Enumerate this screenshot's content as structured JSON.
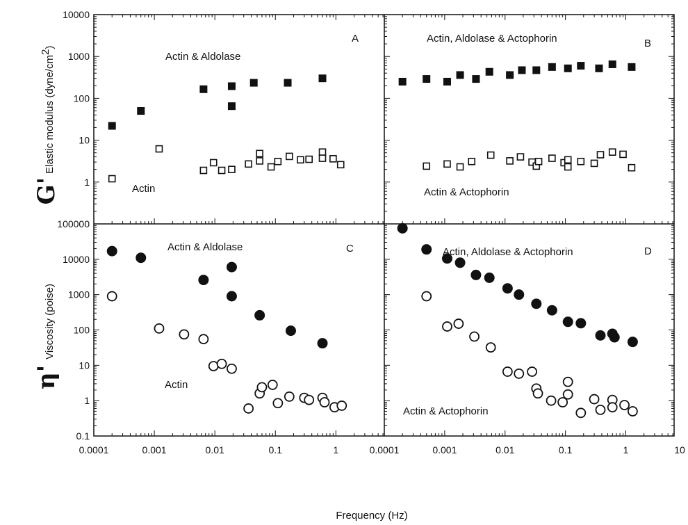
{
  "chart_data": {
    "type": "scatter",
    "xlabel": "Frequency (Hz)",
    "xscale": "log",
    "xlim": [
      0.0001,
      10
    ],
    "x_tick_labels": [
      "0.0001",
      "0.001",
      "0.01",
      "0.1",
      "1",
      "0.0001",
      "0.001",
      "0.01",
      "0.1",
      "1",
      "10"
    ],
    "rows": [
      {
        "ylabel_symbol": "G'",
        "ylabel_text": "Elastic modulus (dyne/cm",
        "ylabel_superscript": "2",
        "ylabel_close": ")",
        "yscale": "log",
        "ylim": [
          0.1,
          10000
        ],
        "y_tick_labels": [
          "10000",
          "1000",
          "100",
          "10",
          "1"
        ]
      },
      {
        "ylabel_symbol": "η'",
        "ylabel_text": "Viscosity (poise)",
        "yscale": "log",
        "ylim": [
          0.1,
          100000
        ],
        "y_tick_labels": [
          "100000",
          "10000",
          "1000",
          "100",
          "10",
          "1",
          "0.1"
        ]
      }
    ],
    "panels": [
      {
        "label": "A",
        "row": 0,
        "col": 0,
        "series": [
          {
            "name": "Actin & Aldolase",
            "marker": "filled-square",
            "points": [
              [
                0.0002,
                22
              ],
              [
                0.0006,
                50
              ],
              [
                0.0065,
                165
              ],
              [
                0.019,
                195
              ],
              [
                0.019,
                65
              ],
              [
                0.044,
                235
              ],
              [
                0.16,
                235
              ],
              [
                0.6,
                300
              ]
            ]
          },
          {
            "name": "Actin",
            "marker": "open-square",
            "points": [
              [
                0.0002,
                1.2
              ],
              [
                0.0012,
                6.2
              ],
              [
                0.0065,
                1.9
              ],
              [
                0.0095,
                2.9
              ],
              [
                0.013,
                1.9
              ],
              [
                0.019,
                2.0
              ],
              [
                0.036,
                2.7
              ],
              [
                0.055,
                4.8
              ],
              [
                0.055,
                3.2
              ],
              [
                0.085,
                2.3
              ],
              [
                0.11,
                3.1
              ],
              [
                0.17,
                4.1
              ],
              [
                0.26,
                3.4
              ],
              [
                0.36,
                3.5
              ],
              [
                0.6,
                5.2
              ],
              [
                0.6,
                3.7
              ],
              [
                0.9,
                3.6
              ],
              [
                1.2,
                2.6
              ]
            ]
          }
        ]
      },
      {
        "label": "B",
        "row": 0,
        "col": 1,
        "series": [
          {
            "name": "Actin, Aldolase & Actophorin",
            "marker": "filled-square",
            "points": [
              [
                0.0002,
                250
              ],
              [
                0.0005,
                290
              ],
              [
                0.0011,
                250
              ],
              [
                0.0018,
                360
              ],
              [
                0.0033,
                290
              ],
              [
                0.0055,
                430
              ],
              [
                0.012,
                360
              ],
              [
                0.019,
                470
              ],
              [
                0.033,
                470
              ],
              [
                0.06,
                560
              ],
              [
                0.11,
                520
              ],
              [
                0.18,
                600
              ],
              [
                0.36,
                520
              ],
              [
                0.6,
                650
              ],
              [
                1.25,
                560
              ]
            ]
          },
          {
            "name": "Actin & Actophorin",
            "marker": "open-square",
            "points": [
              [
                0.0005,
                2.4
              ],
              [
                0.0011,
                2.7
              ],
              [
                0.0018,
                2.3
              ],
              [
                0.0028,
                3.1
              ],
              [
                0.0058,
                4.4
              ],
              [
                0.012,
                3.2
              ],
              [
                0.018,
                4.0
              ],
              [
                0.028,
                3.0
              ],
              [
                0.033,
                2.4
              ],
              [
                0.036,
                3.1
              ],
              [
                0.06,
                3.7
              ],
              [
                0.095,
                2.9
              ],
              [
                0.11,
                2.3
              ],
              [
                0.11,
                3.4
              ],
              [
                0.18,
                3.1
              ],
              [
                0.3,
                2.8
              ],
              [
                0.38,
                4.5
              ],
              [
                0.6,
                5.2
              ],
              [
                0.9,
                4.6
              ],
              [
                1.25,
                2.2
              ]
            ]
          }
        ]
      },
      {
        "label": "C",
        "row": 1,
        "col": 0,
        "series": [
          {
            "name": "Actin & Aldolase",
            "marker": "filled-circle",
            "points": [
              [
                0.0002,
                17000
              ],
              [
                0.0006,
                11000
              ],
              [
                0.0065,
                2600
              ],
              [
                0.019,
                6000
              ],
              [
                0.019,
                900
              ],
              [
                0.055,
                260
              ],
              [
                0.18,
                95
              ],
              [
                0.6,
                42
              ]
            ]
          },
          {
            "name": "Actin",
            "marker": "open-circle",
            "points": [
              [
                0.0002,
                900
              ],
              [
                0.0012,
                110
              ],
              [
                0.0031,
                75
              ],
              [
                0.0065,
                55
              ],
              [
                0.0095,
                9.5
              ],
              [
                0.013,
                11
              ],
              [
                0.019,
                8
              ],
              [
                0.036,
                0.6
              ],
              [
                0.055,
                1.6
              ],
              [
                0.06,
                2.4
              ],
              [
                0.09,
                2.8
              ],
              [
                0.11,
                0.85
              ],
              [
                0.17,
                1.3
              ],
              [
                0.3,
                1.2
              ],
              [
                0.36,
                1.05
              ],
              [
                0.6,
                1.2
              ],
              [
                0.65,
                0.9
              ],
              [
                0.95,
                0.65
              ],
              [
                1.25,
                0.72
              ]
            ]
          }
        ]
      },
      {
        "label": "D",
        "row": 1,
        "col": 1,
        "series": [
          {
            "name": "Actin, Aldolase & Actophorin",
            "marker": "filled-circle",
            "points": [
              [
                0.0002,
                75000
              ],
              [
                0.0005,
                19000
              ],
              [
                0.0011,
                10500
              ],
              [
                0.0018,
                8000
              ],
              [
                0.0033,
                3600
              ],
              [
                0.0055,
                3000
              ],
              [
                0.011,
                1500
              ],
              [
                0.017,
                1000
              ],
              [
                0.033,
                550
              ],
              [
                0.06,
                360
              ],
              [
                0.11,
                170
              ],
              [
                0.18,
                155
              ],
              [
                0.38,
                70
              ],
              [
                0.65,
                62
              ],
              [
                0.6,
                78
              ],
              [
                1.3,
                46
              ]
            ]
          },
          {
            "name": "Actin & Actophorin",
            "marker": "open-circle",
            "points": [
              [
                0.0005,
                900
              ],
              [
                0.0011,
                125
              ],
              [
                0.0017,
                150
              ],
              [
                0.0031,
                65
              ],
              [
                0.0058,
                32
              ],
              [
                0.011,
                6.6
              ],
              [
                0.017,
                5.8
              ],
              [
                0.028,
                6.6
              ],
              [
                0.033,
                2.2
              ],
              [
                0.035,
                1.6
              ],
              [
                0.058,
                1.0
              ],
              [
                0.09,
                0.9
              ],
              [
                0.11,
                1.5
              ],
              [
                0.11,
                3.4
              ],
              [
                0.18,
                0.45
              ],
              [
                0.3,
                1.1
              ],
              [
                0.38,
                0.55
              ],
              [
                0.6,
                1.05
              ],
              [
                0.6,
                0.65
              ],
              [
                0.95,
                0.75
              ],
              [
                1.3,
                0.5
              ]
            ]
          }
        ]
      }
    ]
  }
}
